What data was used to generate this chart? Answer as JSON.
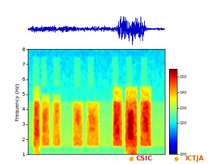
{
  "fig_width": 3.0,
  "fig_height": 2.31,
  "dpi": 100,
  "bg_color": "#ffffff",
  "seismogram_color": "#0000cc",
  "spectrogram_cmap": "jet",
  "freq_min": 1,
  "freq_max": 8,
  "freq_ticks": [
    1,
    2,
    3,
    4,
    5,
    6,
    7,
    8
  ],
  "colorbar_ticks": [
    100,
    120,
    130,
    140,
    150
  ],
  "colorbar_vmin": 100,
  "colorbar_vmax": 155,
  "ylabel": "Frequency (Hz)",
  "logo_csic_color": "#cc2222",
  "logo_ictja_color": "#dd6600",
  "logo_text_csic": "CSIC",
  "logo_text_ictja": "ICTJA"
}
